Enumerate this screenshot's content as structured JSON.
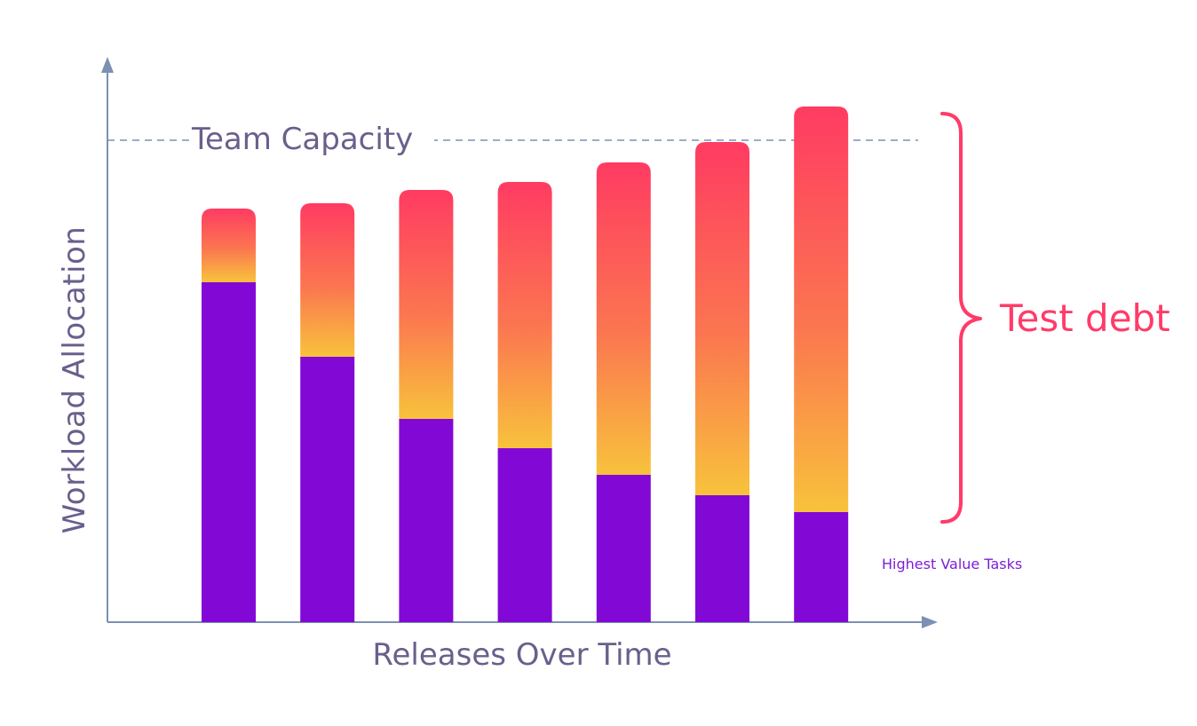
{
  "chart_data": {
    "type": "bar",
    "stacked": true,
    "categories": [
      "",
      "",
      "",
      "",
      "",
      "",
      ""
    ],
    "series": [
      {
        "name": "Highest Value Tasks",
        "values": [
          383,
          299,
          229,
          196,
          166,
          143,
          124
        ],
        "color": "#8208d6"
      },
      {
        "name": "Test debt",
        "values": [
          83,
          173,
          258,
          300,
          352,
          398,
          457
        ],
        "color_top": "#ff3b62",
        "color_bottom": "#f8c23c"
      }
    ],
    "ylim": [
      0,
      590
    ],
    "team_capacity": 543,
    "xlabel": "Releases Over Time",
    "ylabel": "Workload Allocation",
    "capacity_label": "Team Capacity",
    "annotations": {
      "debt": "Test debt",
      "high_value": "Highest Value Tasks"
    },
    "colors": {
      "axis": "#7b90b3",
      "text": "#6a5f8c",
      "debt_text": "#ff3b68",
      "hv_text": "#7d1ed6"
    }
  }
}
